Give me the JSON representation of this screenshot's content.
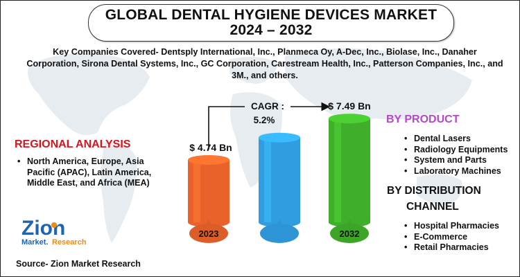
{
  "title": {
    "line1": "GLOBAL DENTAL HYGIENE DEVICES MARKET",
    "line2": "2024 – 2032"
  },
  "companies_text": "Key Companies Covered- Dentsply International, Inc., Planmeca Oy, A-Dec, Inc., Biolase, Inc., Danaher Corporation, Sirona Dental Systems, Inc., GC Corporation, Carestream Health, Inc., Patterson Companies, Inc., and 3M., and others.",
  "regional": {
    "heading": "REGIONAL ANALYSIS",
    "items": [
      "North America, Europe, Asia Pacific (APAC), Latin America, Middle East, and Africa (MEA)"
    ]
  },
  "by_product": {
    "heading": "BY PRODUCT",
    "items": [
      "Dental Lasers",
      "Radiology Equipments",
      "System and Parts",
      "Laboratory Machines"
    ]
  },
  "by_channel": {
    "heading_line1": "BY DISTRIBUTION",
    "heading_line2": "CHANNEL",
    "items": [
      "Hospital Pharmacies",
      "E-Commerce",
      "Retail Pharmacies"
    ]
  },
  "source": "Source- Zion Market Research",
  "logo": {
    "word": "Zion",
    "sub1": "Market.",
    "sub2": "Research"
  },
  "colors": {
    "accent_red": "#d7141c",
    "purple": "#b548c8",
    "bar_2023": "#e8622a",
    "bar_mid": "#2f9de0",
    "bar_2032": "#3fae2a",
    "logo_blue": "#1f63b3",
    "logo_orange": "#f08a12"
  },
  "chart_data": {
    "type": "bar",
    "categories": [
      "2023",
      "",
      "2032"
    ],
    "values": [
      4.74,
      null,
      7.49
    ],
    "value_labels": [
      "$ 4.74 Bn",
      "",
      "$ 7.49 Bn"
    ],
    "cagr_label": "CAGR :",
    "cagr_value": "5.2%",
    "unit": "$ Bn"
  }
}
